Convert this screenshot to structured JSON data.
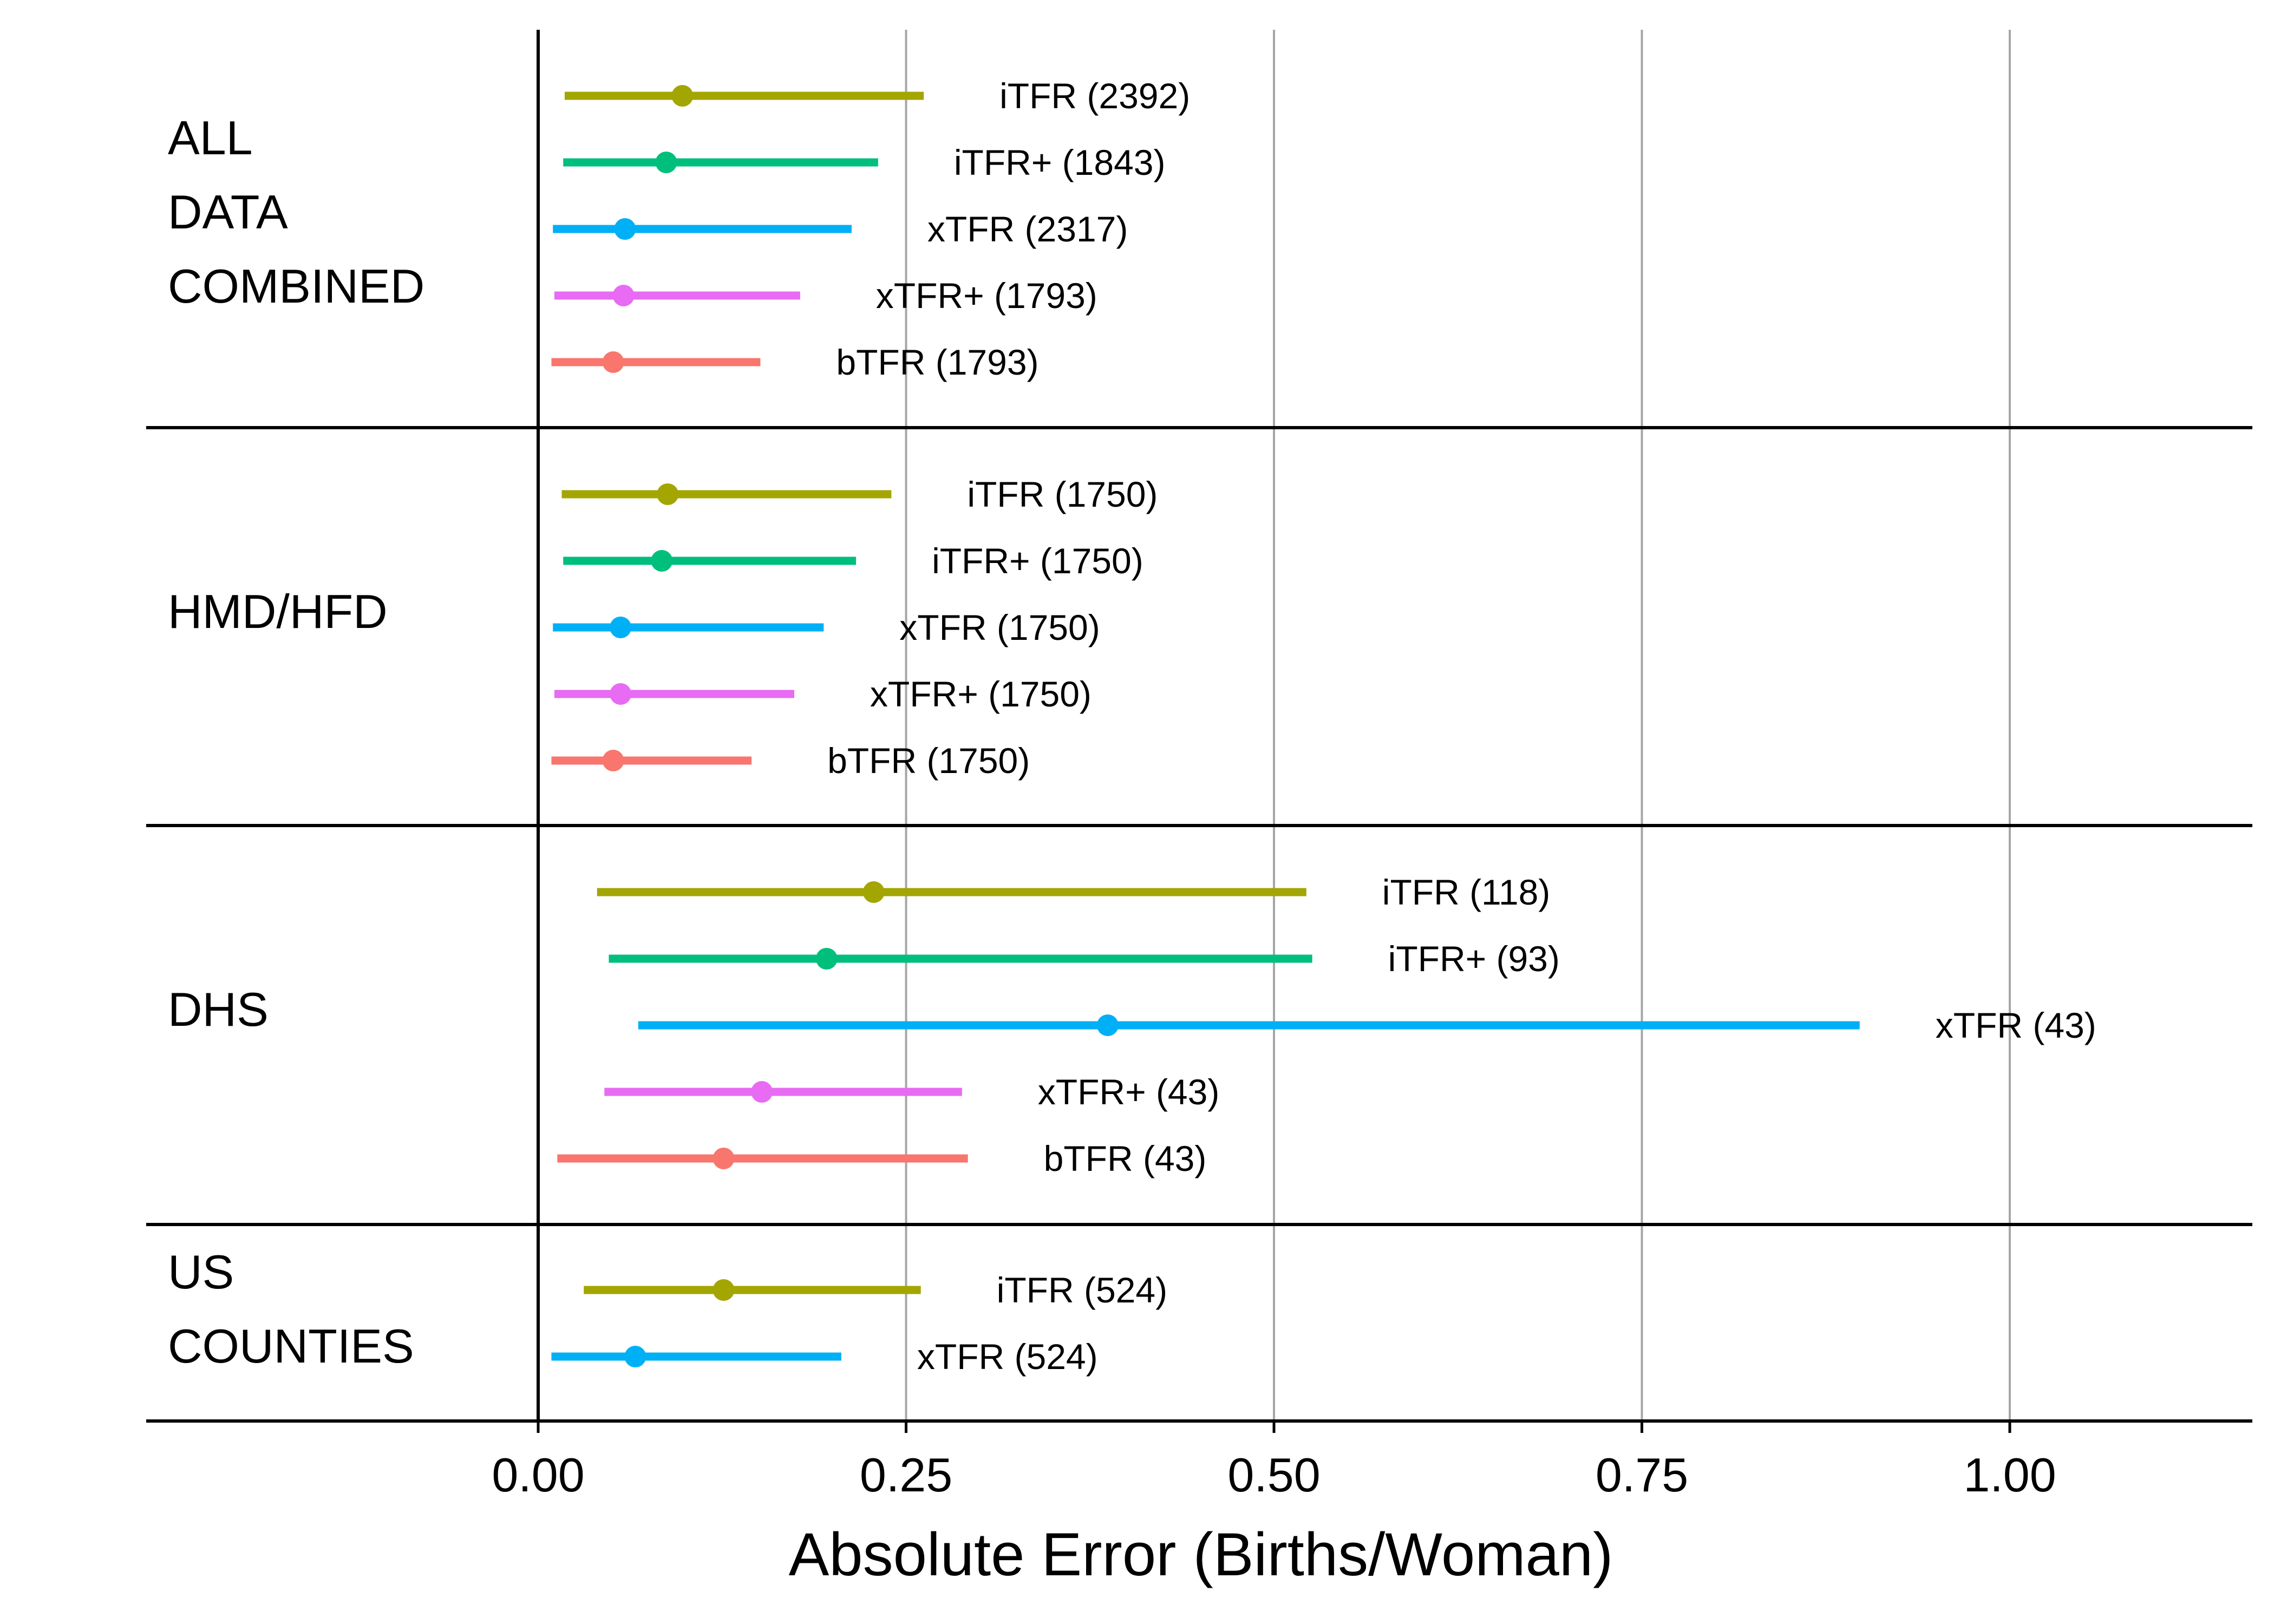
{
  "chart_data": {
    "type": "dot-interval",
    "xlabel": "Absolute Error (Births/Woman)",
    "xlim": [
      -0.265,
      1.17
    ],
    "xticks": [
      0,
      0.25,
      0.5,
      0.75,
      1.0
    ],
    "xtick_labels": [
      "0.00",
      "0.25",
      "0.50",
      "0.75",
      "1.00"
    ],
    "grid": "vertical lines at ticks 0.25, 0.50, 0.75, 1.00",
    "colors": {
      "iTFR": "#a3a500",
      "iTFR+": "#00bf7d",
      "xTFR": "#00b0f6",
      "xTFR+": "#e76bf3",
      "bTFR": "#f8766d"
    },
    "groups": [
      {
        "name": "ALL DATA COMBINED",
        "label_lines": [
          "ALL",
          "DATA",
          "COMBINED"
        ],
        "series": [
          {
            "method": "iTFR",
            "label": "iTFR (2392)",
            "low": 0.018,
            "point": 0.098,
            "high": 0.262
          },
          {
            "method": "iTFR+",
            "label": "iTFR+ (1843)",
            "low": 0.017,
            "point": 0.087,
            "high": 0.231
          },
          {
            "method": "xTFR",
            "label": "xTFR (2317)",
            "low": 0.01,
            "point": 0.059,
            "high": 0.213
          },
          {
            "method": "xTFR+",
            "label": "xTFR+ (1793)",
            "low": 0.011,
            "point": 0.058,
            "high": 0.178
          },
          {
            "method": "bTFR",
            "label": "bTFR (1793)",
            "low": 0.009,
            "point": 0.051,
            "high": 0.151
          }
        ]
      },
      {
        "name": "HMD/HFD",
        "label_lines": [
          "HMD/HFD"
        ],
        "series": [
          {
            "method": "iTFR",
            "label": "iTFR (1750)",
            "low": 0.016,
            "point": 0.088,
            "high": 0.24
          },
          {
            "method": "iTFR+",
            "label": "iTFR+ (1750)",
            "low": 0.017,
            "point": 0.084,
            "high": 0.216
          },
          {
            "method": "xTFR",
            "label": "xTFR (1750)",
            "low": 0.01,
            "point": 0.056,
            "high": 0.194
          },
          {
            "method": "xTFR+",
            "label": "xTFR+ (1750)",
            "low": 0.011,
            "point": 0.056,
            "high": 0.174
          },
          {
            "method": "bTFR",
            "label": "bTFR (1750)",
            "low": 0.009,
            "point": 0.051,
            "high": 0.145
          }
        ]
      },
      {
        "name": "DHS",
        "label_lines": [
          "DHS"
        ],
        "series": [
          {
            "method": "iTFR",
            "label": "iTFR (118)",
            "low": 0.04,
            "point": 0.228,
            "high": 0.522
          },
          {
            "method": "iTFR+",
            "label": "iTFR+ (93)",
            "low": 0.048,
            "point": 0.196,
            "high": 0.526
          },
          {
            "method": "xTFR",
            "label": "xTFR (43)",
            "low": 0.068,
            "point": 0.387,
            "high": 0.898
          },
          {
            "method": "xTFR+",
            "label": "xTFR+ (43)",
            "low": 0.045,
            "point": 0.152,
            "high": 0.288
          },
          {
            "method": "bTFR",
            "label": "bTFR (43)",
            "low": 0.013,
            "point": 0.126,
            "high": 0.292
          }
        ]
      },
      {
        "name": "US COUNTIES",
        "label_lines": [
          "US",
          "COUNTIES"
        ],
        "series": [
          {
            "method": "iTFR",
            "label": "iTFR (524)",
            "low": 0.031,
            "point": 0.126,
            "high": 0.26
          },
          {
            "method": "xTFR",
            "label": "xTFR (524)",
            "low": 0.009,
            "point": 0.066,
            "high": 0.206
          }
        ]
      }
    ]
  }
}
